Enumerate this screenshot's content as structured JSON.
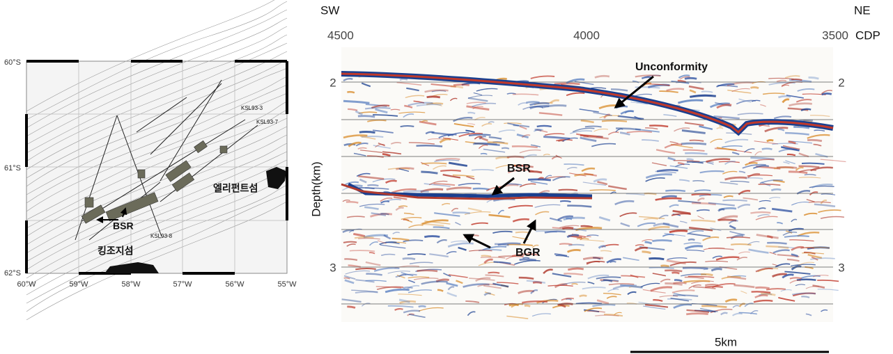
{
  "map": {
    "lat_labels": [
      "60°S",
      "61°S",
      "62°S"
    ],
    "lon_labels": [
      "60°W",
      "59°W",
      "58°W",
      "57°W",
      "56°W",
      "55°W"
    ],
    "line_labels": [
      "KSL93-3",
      "KSL93-7",
      "KSL93-8"
    ],
    "islands": [
      "엘리펀트섬",
      "킹조지섬"
    ],
    "annotation": "BSR"
  },
  "section": {
    "left_direction": "SW",
    "right_direction": "NE",
    "cdp_labels": [
      "4500",
      "4000",
      "3500"
    ],
    "cdp_unit": "CDP",
    "depth_labels": [
      "2",
      "3"
    ],
    "axis_label": "Depth(km)",
    "annotations": [
      "Unconformity",
      "BSR",
      "BGR"
    ],
    "scale_bar": "5km"
  }
}
